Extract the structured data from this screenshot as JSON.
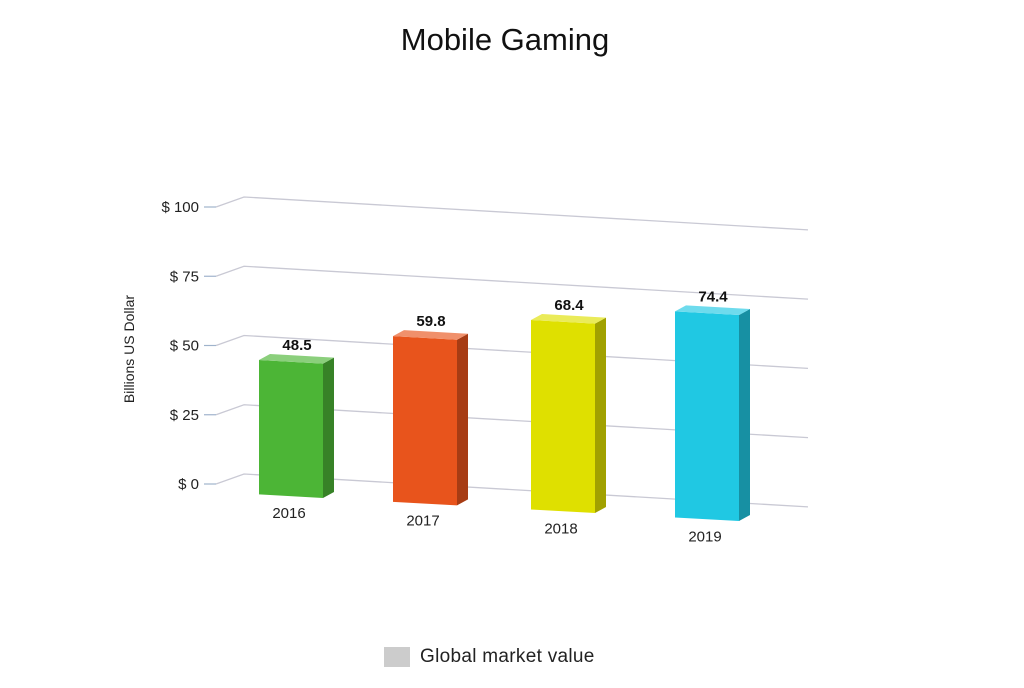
{
  "chart_data": {
    "type": "bar",
    "title": "Mobile Gaming",
    "xlabel": "",
    "ylabel": "Billions US Dollar",
    "categories": [
      "2016",
      "2017",
      "2018",
      "2019"
    ],
    "series": [
      {
        "name": "Global market value",
        "values": [
          48.5,
          59.8,
          68.4,
          74.4
        ]
      }
    ],
    "data_labels": [
      "48.5",
      "59.8",
      "68.4",
      "74.4"
    ],
    "ylim": [
      0,
      100
    ],
    "yticks": [
      0,
      25,
      50,
      75,
      100
    ],
    "ytick_labels": [
      "$ 0",
      "$ 25",
      "$ 50",
      "$ 75",
      "$ 100"
    ],
    "bar_colors": [
      "#4cb536",
      "#e8541c",
      "#dfe000",
      "#20c8e3"
    ],
    "legend_swatch_color": "#cccccc",
    "legend_position": "bottom",
    "grid": true,
    "style": "3d"
  }
}
